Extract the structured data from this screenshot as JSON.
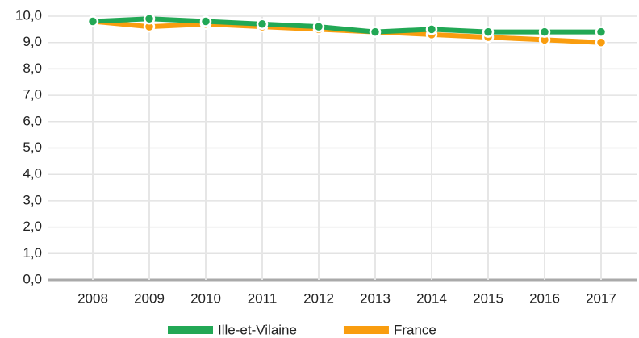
{
  "chart_data": {
    "type": "line",
    "categories": [
      "2008",
      "2009",
      "2010",
      "2011",
      "2012",
      "2013",
      "2014",
      "2015",
      "2016",
      "2017"
    ],
    "series": [
      {
        "name": "Ille-et-Vilaine",
        "color": "#22a855",
        "values": [
          9.8,
          9.9,
          9.8,
          9.7,
          9.6,
          9.4,
          9.5,
          9.4,
          9.4,
          9.4
        ]
      },
      {
        "name": "France",
        "color": "#f99d0f",
        "values": [
          9.8,
          9.6,
          9.7,
          9.6,
          9.5,
          9.4,
          9.3,
          9.2,
          9.1,
          9.0
        ]
      }
    ],
    "ylim": [
      0,
      10
    ],
    "yticks": [
      {
        "value": 0,
        "label": "0,0"
      },
      {
        "value": 1,
        "label": "1,0"
      },
      {
        "value": 2,
        "label": "2,0"
      },
      {
        "value": 3,
        "label": "3,0"
      },
      {
        "value": 4,
        "label": "4,0"
      },
      {
        "value": 5,
        "label": "5,0"
      },
      {
        "value": 6,
        "label": "6,0"
      },
      {
        "value": 7,
        "label": "7,0"
      },
      {
        "value": 8,
        "label": "8,0"
      },
      {
        "value": 9,
        "label": "9,0"
      },
      {
        "value": 10,
        "label": "10,0"
      }
    ],
    "grid": true,
    "legend": "bottom"
  }
}
